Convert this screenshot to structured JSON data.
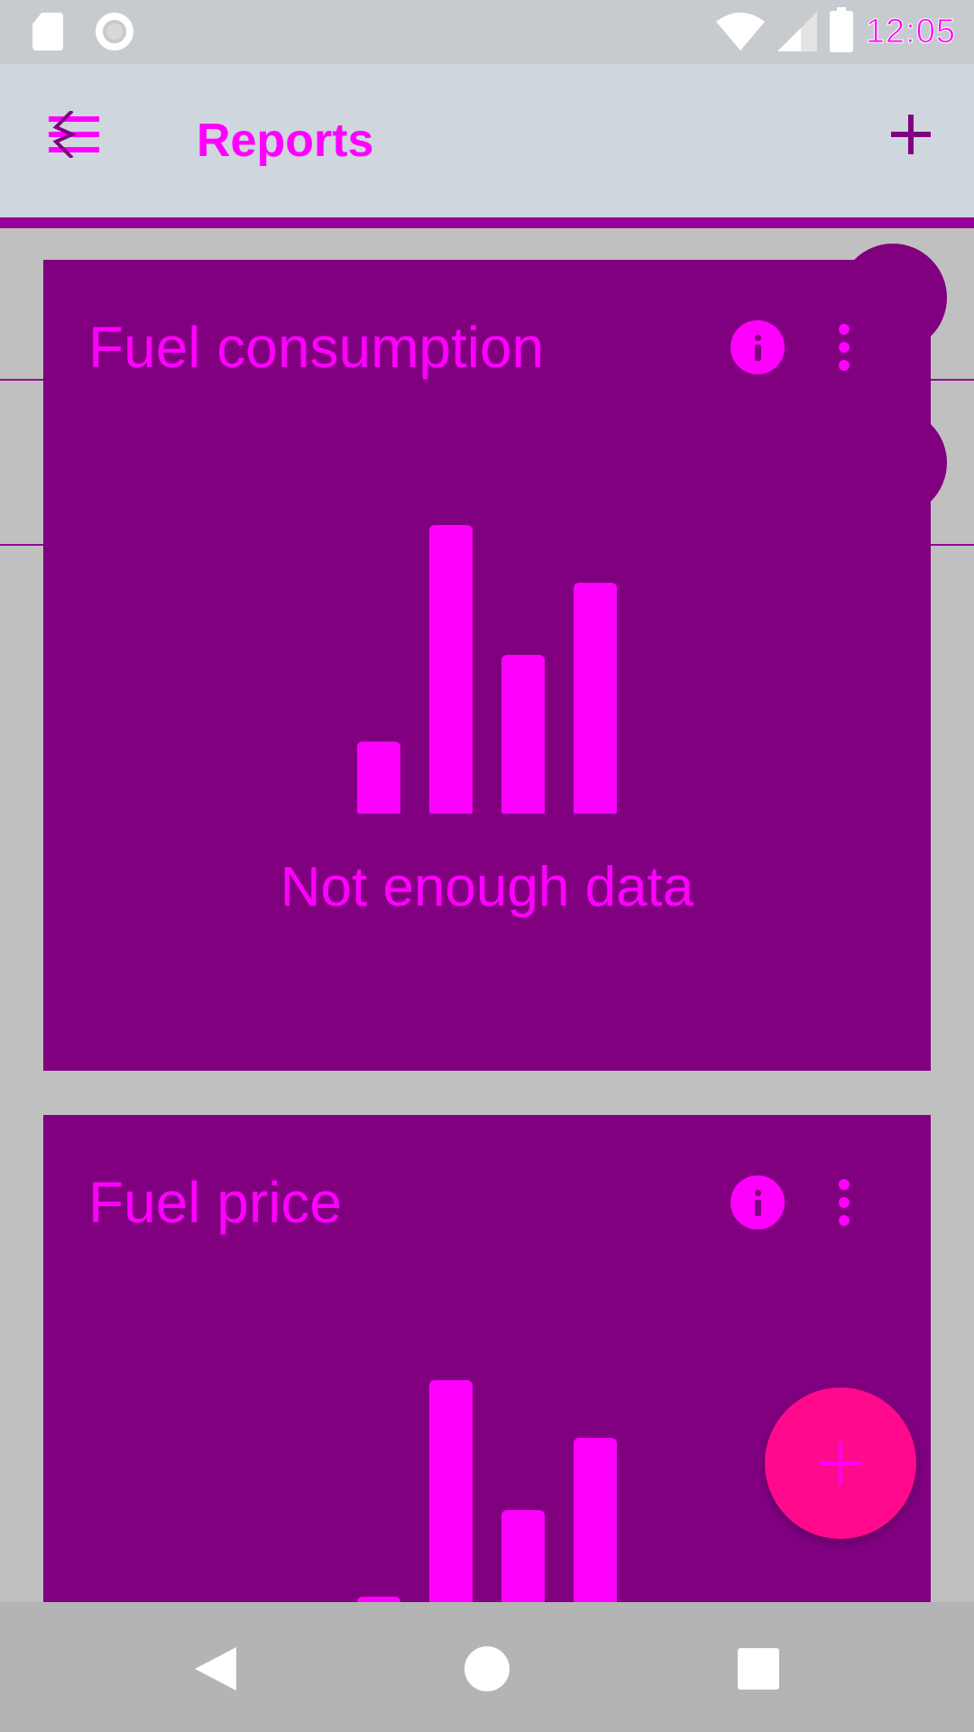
{
  "status_bar": {
    "time": "12:05",
    "icons": [
      "sd-card-icon",
      "sync-ring-icon",
      "wifi-icon",
      "cell-signal-icon",
      "battery-charging-icon"
    ]
  },
  "app_bar": {
    "title": "Reports",
    "menu_icon": "menu-sort-icon",
    "add_icon": "plus-icon"
  },
  "cards": [
    {
      "title": "Fuel consumption",
      "info_icon": "info-icon",
      "more_icon": "more-vert-icon",
      "placeholder_icon": "bar-chart-icon",
      "empty_text": "Not enough data"
    },
    {
      "title": "Fuel price",
      "info_icon": "info-icon",
      "more_icon": "more-vert-icon",
      "placeholder_icon": "bar-chart-icon"
    }
  ],
  "fab": {
    "icon": "plus-icon"
  },
  "nav_bar": {
    "icons": [
      "back-icon",
      "home-icon",
      "recents-icon"
    ]
  },
  "colors": {
    "accent": "#ff00ff",
    "card": "#800080",
    "fab": "#ff0a8c",
    "app_bar": "#cfd6dd",
    "background": "#c0c0c0"
  }
}
